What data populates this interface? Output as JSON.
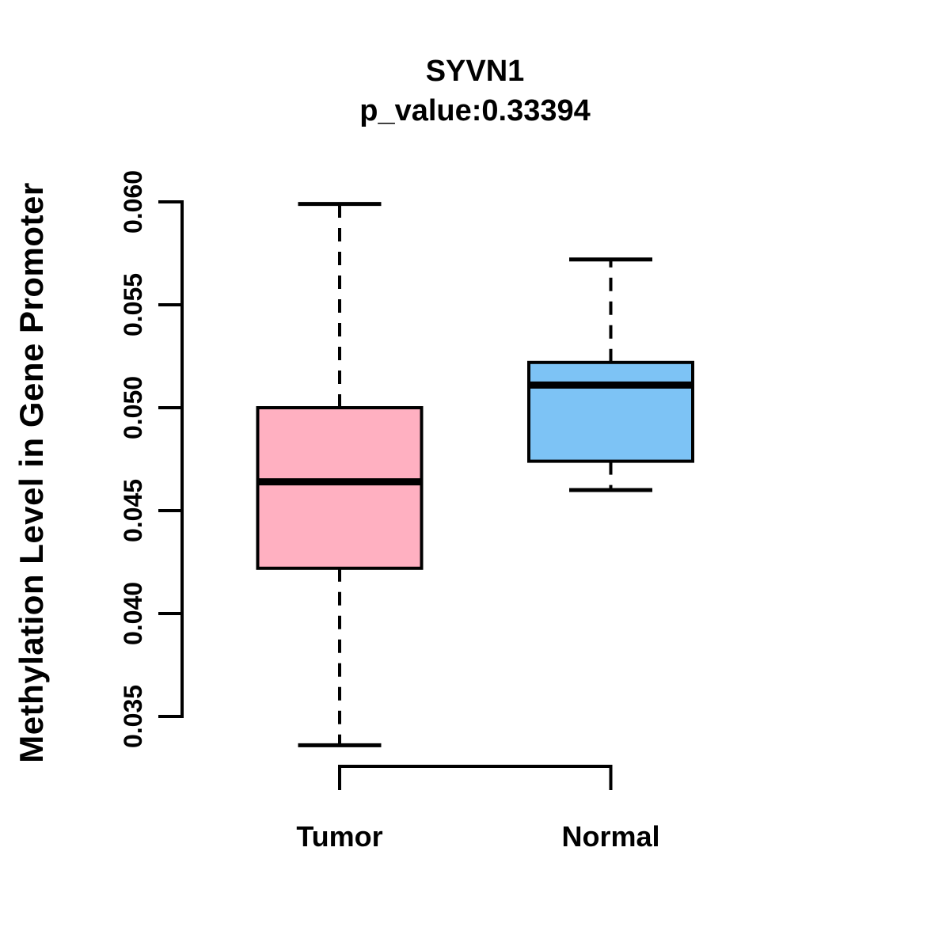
{
  "page": {
    "background": "#ffffff"
  },
  "header": {
    "title": "SYVN1",
    "subtitle": "p_value:0.33394"
  },
  "y_axis": {
    "label": "Methylation Level in Gene Promoter",
    "ticks": [
      "0.035",
      "0.040",
      "0.045",
      "0.050",
      "0.055",
      "0.060"
    ]
  },
  "x_axis": {
    "categories": [
      "Tumor",
      "Normal"
    ]
  },
  "chart_data": {
    "type": "boxplot",
    "title": "SYVN1",
    "subtitle": "p_value:0.33394",
    "p_value": 0.33394,
    "gene": "SYVN1",
    "xlabel": "",
    "ylabel": "Methylation Level in Gene Promoter",
    "categories": [
      "Tumor",
      "Normal"
    ],
    "ylim": [
      0.035,
      0.06
    ],
    "y_tick_labels": [
      "0.035",
      "0.040",
      "0.045",
      "0.050",
      "0.055",
      "0.060"
    ],
    "grid": false,
    "legend": "none",
    "whisker_style": "dashed",
    "line_color": "#000000",
    "series": [
      {
        "name": "Tumor",
        "color": "#FFB0C1",
        "whisker_low": 0.0336,
        "q1": 0.0422,
        "median": 0.0464,
        "q3": 0.05,
        "whisker_high": 0.0599
      },
      {
        "name": "Normal",
        "color": "#7DC3F5",
        "whisker_low": 0.046,
        "q1": 0.0474,
        "median": 0.0511,
        "q3": 0.0522,
        "whisker_high": 0.0572
      }
    ]
  }
}
